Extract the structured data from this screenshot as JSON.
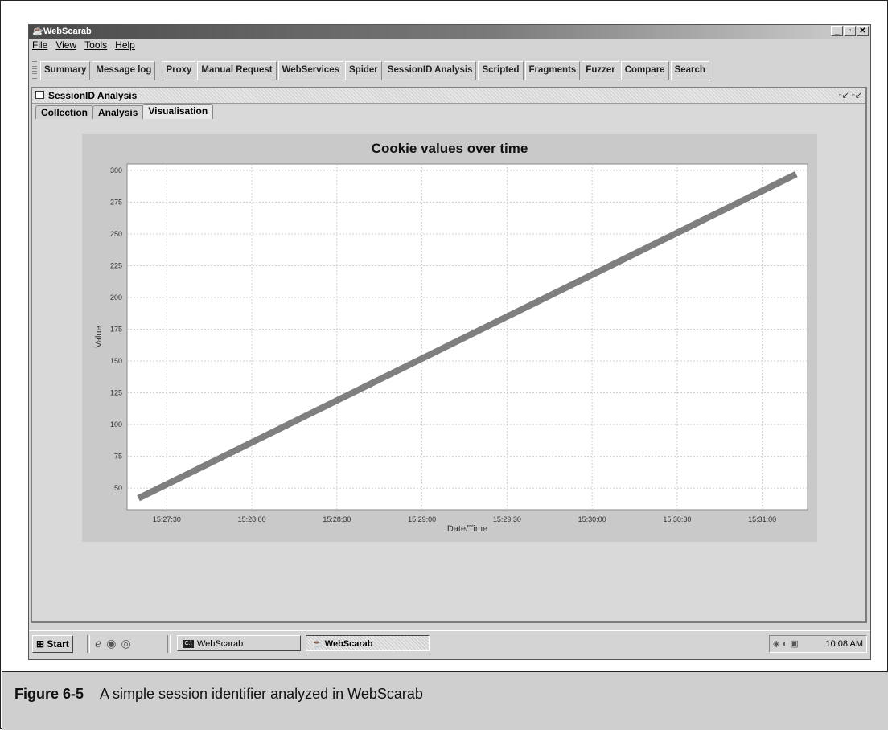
{
  "window": {
    "title": "WebScarab",
    "min": "_",
    "max": "▫",
    "close": "✕"
  },
  "menu": [
    "File",
    "View",
    "Tools",
    "Help"
  ],
  "toolbar_tabs": [
    "Summary",
    "Message log",
    "Proxy",
    "Manual Request",
    "WebServices",
    "Spider",
    "SessionID Analysis",
    "Scripted",
    "Fragments",
    "Fuzzer",
    "Compare",
    "Search"
  ],
  "internal_frame": {
    "title": "SessionID Analysis"
  },
  "subtabs": [
    "Collection",
    "Analysis",
    "Visualisation"
  ],
  "chart_data": {
    "type": "line",
    "title": "Cookie values over time",
    "xlabel": "Date/Time",
    "ylabel": "Value",
    "x_tick_labels": [
      "15:27:30",
      "15:28:00",
      "15:28:30",
      "15:29:00",
      "15:29:30",
      "15:30:00",
      "15:30:30",
      "15:31:00"
    ],
    "y_ticks": [
      50,
      75,
      100,
      125,
      150,
      175,
      200,
      225,
      250,
      275,
      300
    ],
    "ylim": [
      33,
      305
    ],
    "xlim": [
      "15:27:16",
      "15:31:16"
    ],
    "grid": true,
    "series": [
      {
        "points": [
          [
            "15:27:20",
            42
          ],
          [
            "15:31:12",
            297
          ]
        ],
        "color": "#7f7f7f"
      }
    ]
  },
  "taskbar": {
    "start": "Start",
    "items": [
      "WebScarab",
      "WebScarab"
    ],
    "cmd_icon": "C:\\",
    "clock": "10:08 AM"
  },
  "caption": {
    "number": "Figure 6-5",
    "text": "A simple session identifier analyzed in WebScarab"
  }
}
